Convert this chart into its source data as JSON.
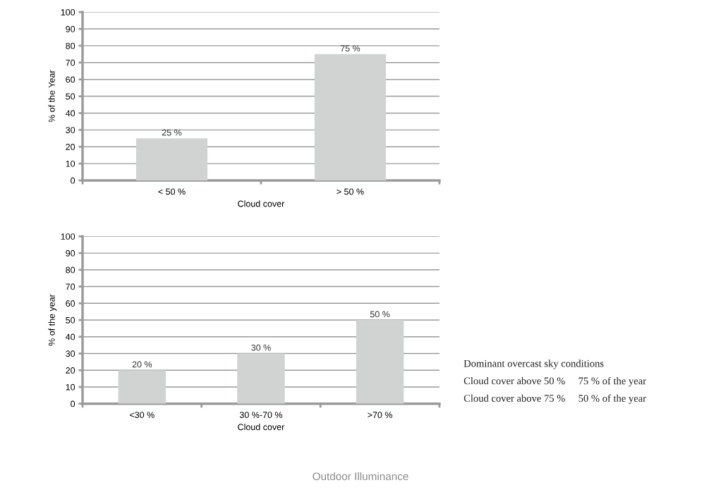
{
  "chart_data": [
    {
      "type": "bar",
      "categories": [
        "< 50 %",
        "> 50 %"
      ],
      "values": [
        25,
        75
      ],
      "value_labels": [
        "25 %",
        "75 %"
      ],
      "color": "#d1d3d2",
      "xlabel": "Cloud cover",
      "ylabel": "% of the Year",
      "ylim": [
        0,
        100
      ],
      "yticks": [
        0,
        10,
        20,
        30,
        40,
        50,
        60,
        70,
        80,
        90,
        100
      ],
      "grid": "y",
      "legend": false
    },
    {
      "type": "bar",
      "categories": [
        "<30 %",
        "30 %-70 %",
        ">70 %"
      ],
      "values": [
        20,
        30,
        50
      ],
      "value_labels": [
        "20 %",
        "30 %",
        "50 %"
      ],
      "color": "#d1d3d2",
      "xlabel": "Cloud cover",
      "ylabel": "% of the year",
      "ylim": [
        0,
        100
      ],
      "yticks": [
        0,
        10,
        20,
        30,
        40,
        50,
        60,
        70,
        80,
        90,
        100
      ],
      "grid": "y",
      "legend": false
    },
    {
      "type": "other",
      "title": "Dominant overcast sky conditions",
      "annotations": [
        "Cloud cover above 50 %",
        "75 % of the year",
        "Cloud cover above 75 %",
        "50 % of the year",
        "Outdoor Illuminance"
      ]
    }
  ]
}
